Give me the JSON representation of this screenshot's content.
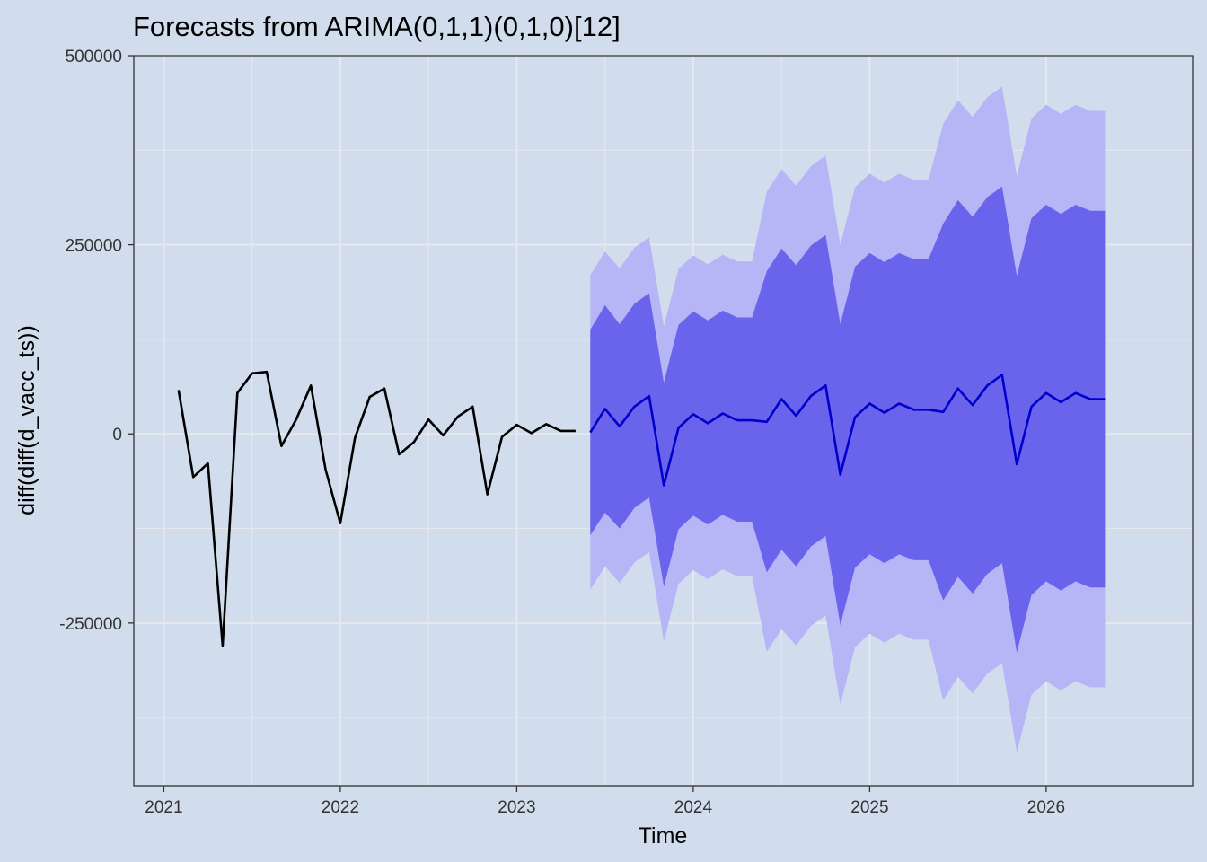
{
  "chart_data": {
    "type": "line",
    "title": "Forecasts from ARIMA(0,1,1)(0,1,0)[12]",
    "xlabel": "Time",
    "ylabel": "diff(diff(d_vacc_ts))",
    "xlim": [
      2020.83,
      2026.83
    ],
    "ylim": [
      -465000,
      500000
    ],
    "x_ticks": [
      2021,
      2022,
      2023,
      2024,
      2025,
      2026
    ],
    "x_tick_labels": [
      "2021",
      "2022",
      "2023",
      "2024",
      "2025",
      "2026"
    ],
    "y_ticks": [
      -250000,
      0,
      250000,
      500000
    ],
    "y_tick_labels": [
      "-250000",
      "0",
      "250000",
      "500000"
    ],
    "grid": true,
    "legend": "none",
    "colors": {
      "background": "#d1dded",
      "grid": "#e6e8ee",
      "observed": "#000000",
      "forecast": "#0000cc",
      "band80": "#6a64ec",
      "band95": "#b6b5f6"
    },
    "observed": {
      "x_start": 2021.083333,
      "step": 0.083333,
      "values": [
        58000,
        -57000,
        -39000,
        -280000,
        54000,
        80000,
        82000,
        -16000,
        19000,
        64000,
        -47000,
        -118000,
        -5000,
        49000,
        60000,
        -27000,
        -11000,
        19000,
        -2000,
        23000,
        36000,
        -80000,
        -4000,
        12000,
        1000,
        13000,
        4000,
        4000
      ]
    },
    "forecast": {
      "x_start": 2023.416667,
      "step": 0.083333,
      "mean": [
        2000,
        33000,
        10000,
        36000,
        50000,
        -68000,
        8000,
        26000,
        14000,
        27000,
        18000,
        18000,
        16000,
        46000,
        24000,
        50000,
        64000,
        -54000,
        22000,
        40000,
        28000,
        40000,
        32000,
        32000,
        29000,
        60000,
        38000,
        64000,
        78000,
        -40000,
        36000,
        54000,
        42000,
        54000,
        46000,
        46000
      ],
      "lo80": [
        -134000,
        -104000,
        -125000,
        -98000,
        -84000,
        -202000,
        -126000,
        -108000,
        -120000,
        -107000,
        -116000,
        -116000,
        -183000,
        -153000,
        -175000,
        -149000,
        -135000,
        -253000,
        -177000,
        -159000,
        -171000,
        -159000,
        -167000,
        -167000,
        -220000,
        -189000,
        -211000,
        -185000,
        -171000,
        -289000,
        -213000,
        -195000,
        -207000,
        -195000,
        -203000,
        -203000
      ],
      "hi80": [
        138000,
        170000,
        145000,
        172000,
        186000,
        68000,
        144000,
        162000,
        150000,
        163000,
        154000,
        154000,
        215000,
        245000,
        223000,
        249000,
        263000,
        145000,
        221000,
        239000,
        227000,
        239000,
        231000,
        231000,
        278000,
        309000,
        287000,
        313000,
        327000,
        209000,
        285000,
        303000,
        291000,
        303000,
        295000,
        295000
      ],
      "lo95": [
        -206000,
        -175000,
        -197000,
        -170000,
        -156000,
        -274000,
        -198000,
        -180000,
        -192000,
        -179000,
        -188000,
        -188000,
        -288000,
        -258000,
        -280000,
        -254000,
        -240000,
        -358000,
        -282000,
        -264000,
        -276000,
        -264000,
        -272000,
        -272000,
        -352000,
        -321000,
        -343000,
        -317000,
        -303000,
        -421000,
        -345000,
        -327000,
        -339000,
        -327000,
        -335000,
        -335000
      ],
      "hi95": [
        210000,
        241000,
        219000,
        246000,
        260000,
        142000,
        218000,
        236000,
        224000,
        237000,
        228000,
        228000,
        320000,
        350000,
        328000,
        354000,
        368000,
        250000,
        326000,
        344000,
        332000,
        344000,
        336000,
        336000,
        410000,
        441000,
        419000,
        445000,
        459000,
        341000,
        417000,
        435000,
        423000,
        435000,
        427000,
        427000
      ]
    }
  }
}
